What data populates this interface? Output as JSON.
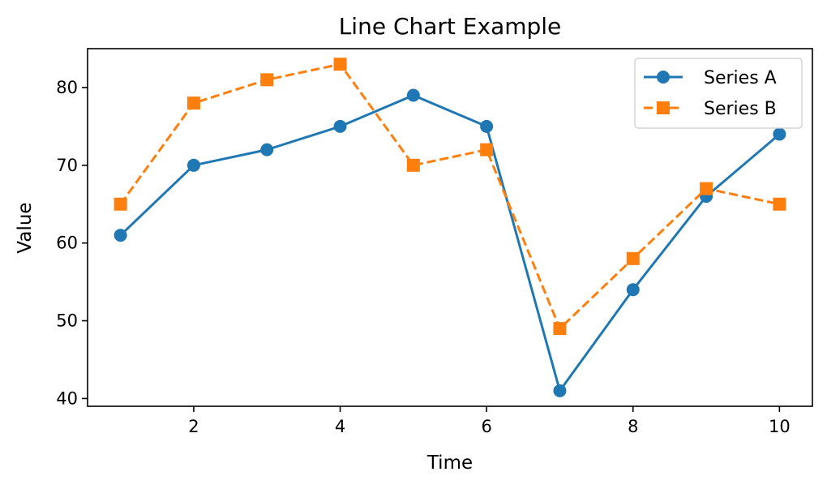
{
  "chart_data": {
    "type": "line",
    "title": "Line Chart Example",
    "xlabel": "Time",
    "ylabel": "Value",
    "x": [
      1,
      2,
      3,
      4,
      5,
      6,
      7,
      8,
      9,
      10
    ],
    "xlim": [
      0.55,
      10.45
    ],
    "ylim": [
      39,
      85
    ],
    "xticks": [
      2,
      4,
      6,
      8,
      10
    ],
    "yticks": [
      40,
      50,
      60,
      70,
      80
    ],
    "grid": false,
    "legend_position": "top-right",
    "series": [
      {
        "name": "Series A",
        "values": [
          61,
          70,
          72,
          75,
          79,
          75,
          41,
          54,
          66,
          74
        ],
        "color": "#1f77b4",
        "marker": "circle",
        "line_style": "solid"
      },
      {
        "name": "Series B",
        "values": [
          65,
          78,
          81,
          83,
          70,
          72,
          49,
          58,
          67,
          65
        ],
        "color": "#ff7f0e",
        "marker": "square",
        "line_style": "dashed"
      }
    ]
  }
}
